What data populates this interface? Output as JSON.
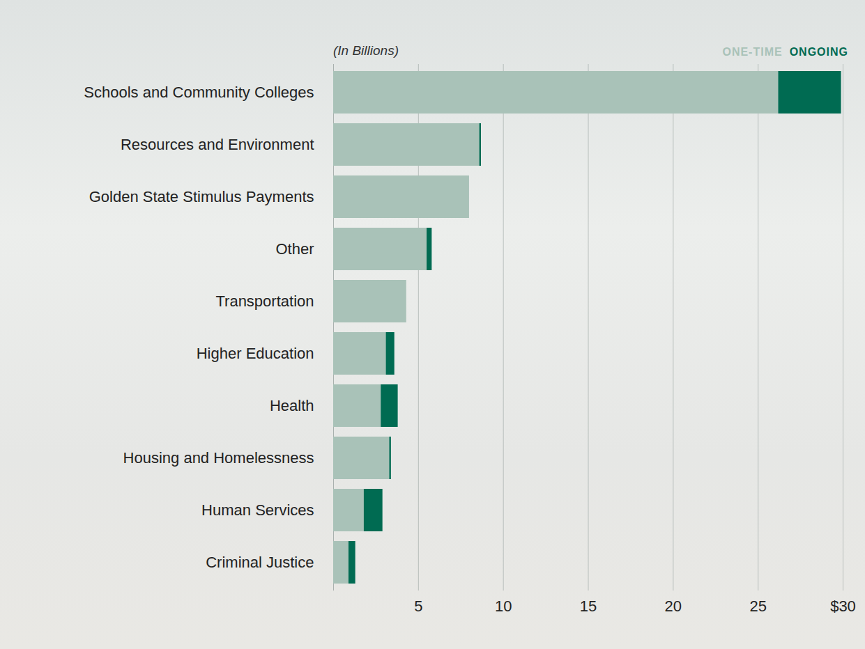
{
  "chart_data": {
    "type": "bar",
    "orientation": "horizontal",
    "stacked": true,
    "subtitle": "(In Billions)",
    "categories": [
      "Schools and Community Colleges",
      "Resources and Environment",
      "Golden State Stimulus Payments",
      "Other",
      "Transportation",
      "Higher Education",
      "Health",
      "Housing and Homelessness",
      "Human Services",
      "Criminal Justice"
    ],
    "series": [
      {
        "name": "ONE-TIME",
        "color": "#a9c2b8",
        "values": [
          26.2,
          8.6,
          8.0,
          5.5,
          4.3,
          3.1,
          2.8,
          3.3,
          1.8,
          0.9
        ]
      },
      {
        "name": "ONGOING",
        "color": "#006b52",
        "values": [
          3.7,
          0.1,
          0,
          0.3,
          0,
          0.5,
          1.0,
          0.1,
          1.1,
          0.4
        ]
      }
    ],
    "xlim": [
      0,
      30
    ],
    "xticks": [
      5,
      10,
      15,
      20,
      25,
      {
        "value": 30,
        "label": "$30"
      }
    ],
    "grid": true,
    "legend": "top-right"
  }
}
